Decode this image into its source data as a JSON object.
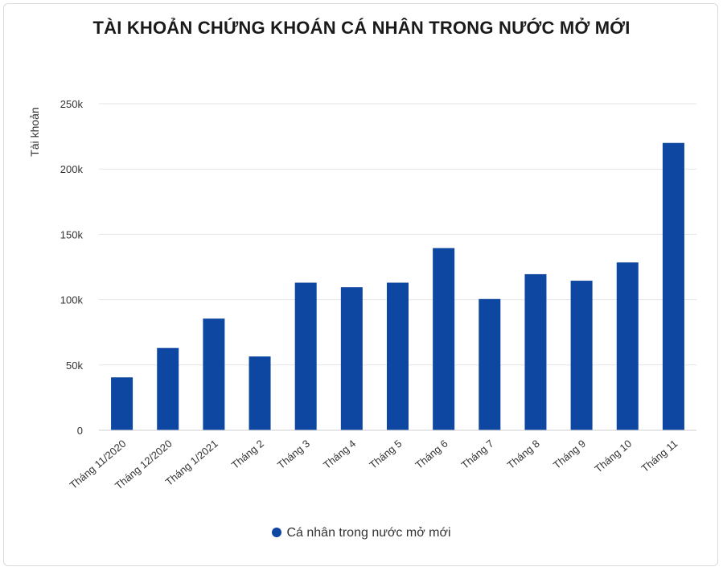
{
  "chart_data": {
    "type": "bar",
    "title": "TÀI KHOẢN CHỨNG KHOÁN CÁ NHÂN TRONG NƯỚC MỞ MỚI",
    "xlabel": "",
    "ylabel": "Tài khoản",
    "ylim": [
      0,
      250000
    ],
    "yticks": [
      {
        "value": 0,
        "label": "0"
      },
      {
        "value": 50000,
        "label": "50k"
      },
      {
        "value": 100000,
        "label": "100k"
      },
      {
        "value": 150000,
        "label": "150k"
      },
      {
        "value": 200000,
        "label": "200k"
      },
      {
        "value": 250000,
        "label": "250k"
      }
    ],
    "categories": [
      "Tháng 11/2020",
      "Tháng 12/2020",
      "Tháng 1/2021",
      "Tháng 2",
      "Tháng 3",
      "Tháng 4",
      "Tháng 5",
      "Tháng 6",
      "Tháng 7",
      "Tháng 8",
      "Tháng 9",
      "Tháng 10",
      "Tháng 11"
    ],
    "series": [
      {
        "name": "Cá nhân trong nước mở mới",
        "color": "#0d47a1",
        "values": [
          40500,
          63000,
          85500,
          56500,
          113000,
          109500,
          113000,
          139500,
          100500,
          119500,
          114500,
          128500,
          220000
        ]
      }
    ],
    "grid": true,
    "legend_position": "bottom"
  }
}
